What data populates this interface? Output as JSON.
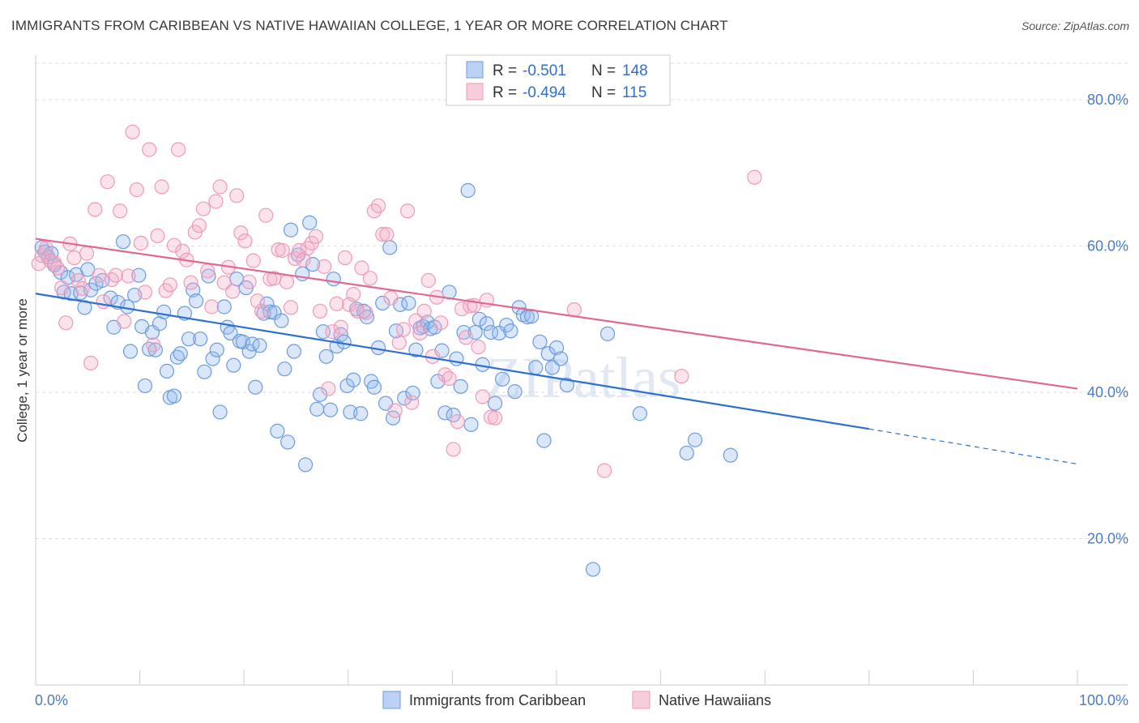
{
  "header": {
    "title": "IMMIGRANTS FROM CARIBBEAN VS NATIVE HAWAIIAN COLLEGE, 1 YEAR OR MORE CORRELATION CHART",
    "source": "Source: ZipAtlas.com"
  },
  "watermark": "ZIPatlas",
  "colors": {
    "blue": "#6a9be0",
    "blue_line": "#2e6fcf",
    "pink": "#ee9ab6",
    "pink_line": "#e0698f",
    "grid": "#dddddd",
    "tick": "#4a7bc8"
  },
  "legend": {
    "rows": [
      {
        "r_label": "R =",
        "r_value": "-0.501",
        "n_label": "N =",
        "n_value": "148"
      },
      {
        "r_label": "R =",
        "r_value": "-0.494",
        "n_label": "N =",
        "n_value": "115"
      }
    ]
  },
  "chart_data": {
    "type": "scatter",
    "xlabel": "",
    "ylabel": "College, 1 year or more",
    "xlim": [
      0,
      100
    ],
    "ylim": [
      0,
      85
    ],
    "x_tick_labels": [
      "0.0%",
      "100.0%"
    ],
    "y_ticks": [
      20,
      40,
      60,
      80
    ],
    "y_tick_labels": [
      "20.0%",
      "40.0%",
      "60.0%",
      "80.0%"
    ],
    "grid": true,
    "legend_position": "top-center",
    "series": [
      {
        "name": "Immigrants from Caribbean",
        "color": "#6a9be0",
        "trend": {
          "x0": 0,
          "y0": 53.5,
          "x1": 80,
          "y1": 35.0,
          "dash_x1": 100,
          "dash_y1": 30.2
        },
        "points": [
          [
            0.6,
            59.8
          ],
          [
            0.9,
            59.2
          ],
          [
            1.2,
            58.5
          ],
          [
            1.5,
            59.0
          ],
          [
            1.8,
            57.4
          ],
          [
            2.4,
            56.4
          ],
          [
            2.7,
            53.7
          ],
          [
            3.1,
            55.7
          ],
          [
            3.4,
            53.5
          ],
          [
            3.9,
            56.1
          ],
          [
            4.3,
            53.6
          ],
          [
            4.7,
            51.6
          ],
          [
            5.0,
            56.8
          ],
          [
            5.3,
            54.0
          ],
          [
            5.8,
            54.9
          ],
          [
            6.4,
            55.3
          ],
          [
            7.2,
            52.9
          ],
          [
            7.5,
            48.9
          ],
          [
            7.9,
            52.3
          ],
          [
            8.4,
            60.6
          ],
          [
            8.8,
            51.7
          ],
          [
            9.1,
            45.6
          ],
          [
            9.5,
            53.3
          ],
          [
            9.9,
            56.0
          ],
          [
            10.2,
            49.0
          ],
          [
            10.5,
            40.9
          ],
          [
            10.9,
            45.9
          ],
          [
            11.2,
            48.2
          ],
          [
            11.5,
            45.8
          ],
          [
            11.9,
            49.4
          ],
          [
            12.3,
            51.0
          ],
          [
            12.6,
            42.9
          ],
          [
            12.9,
            39.3
          ],
          [
            13.3,
            39.5
          ],
          [
            13.6,
            44.8
          ],
          [
            13.9,
            45.3
          ],
          [
            14.3,
            50.8
          ],
          [
            14.7,
            47.3
          ],
          [
            15.1,
            54.0
          ],
          [
            15.4,
            52.5
          ],
          [
            15.8,
            47.3
          ],
          [
            16.2,
            42.8
          ],
          [
            16.6,
            55.9
          ],
          [
            17.0,
            44.6
          ],
          [
            17.4,
            45.8
          ],
          [
            17.7,
            37.3
          ],
          [
            18.1,
            51.7
          ],
          [
            18.4,
            48.9
          ],
          [
            18.7,
            48.1
          ],
          [
            19.0,
            43.7
          ],
          [
            19.3,
            55.5
          ],
          [
            19.6,
            47.0
          ],
          [
            19.9,
            46.9
          ],
          [
            20.2,
            54.3
          ],
          [
            20.5,
            45.6
          ],
          [
            20.8,
            46.6
          ],
          [
            21.1,
            40.7
          ],
          [
            21.5,
            46.4
          ],
          [
            21.9,
            50.8
          ],
          [
            22.2,
            52.1
          ],
          [
            22.5,
            51.0
          ],
          [
            22.9,
            50.9
          ],
          [
            23.2,
            34.7
          ],
          [
            23.6,
            49.8
          ],
          [
            23.9,
            43.2
          ],
          [
            24.2,
            33.2
          ],
          [
            24.5,
            62.2
          ],
          [
            24.8,
            45.6
          ],
          [
            25.2,
            58.8
          ],
          [
            25.6,
            56.2
          ],
          [
            25.9,
            30.1
          ],
          [
            26.3,
            63.2
          ],
          [
            26.6,
            57.5
          ],
          [
            27.0,
            37.7
          ],
          [
            27.3,
            39.7
          ],
          [
            27.6,
            48.3
          ],
          [
            27.9,
            44.9
          ],
          [
            28.3,
            37.6
          ],
          [
            28.6,
            55.5
          ],
          [
            28.9,
            46.3
          ],
          [
            29.3,
            47.9
          ],
          [
            29.6,
            46.9
          ],
          [
            29.9,
            40.9
          ],
          [
            30.2,
            37.3
          ],
          [
            30.5,
            41.7
          ],
          [
            30.8,
            51.4
          ],
          [
            31.2,
            37.1
          ],
          [
            31.5,
            51.1
          ],
          [
            31.8,
            50.3
          ],
          [
            32.2,
            41.5
          ],
          [
            32.5,
            40.7
          ],
          [
            32.9,
            46.1
          ],
          [
            33.3,
            52.2
          ],
          [
            33.6,
            38.5
          ],
          [
            34.0,
            59.8
          ],
          [
            34.3,
            36.5
          ],
          [
            34.6,
            48.4
          ],
          [
            35.0,
            52.0
          ],
          [
            35.4,
            39.2
          ],
          [
            35.8,
            52.2
          ],
          [
            36.2,
            39.9
          ],
          [
            36.5,
            45.8
          ],
          [
            36.9,
            48.8
          ],
          [
            37.2,
            49.0
          ],
          [
            37.6,
            49.6
          ],
          [
            37.9,
            48.7
          ],
          [
            38.3,
            48.9
          ],
          [
            38.6,
            41.5
          ],
          [
            39.0,
            45.7
          ],
          [
            39.3,
            37.2
          ],
          [
            39.7,
            53.7
          ],
          [
            40.1,
            36.9
          ],
          [
            40.4,
            44.6
          ],
          [
            40.8,
            40.8
          ],
          [
            41.1,
            48.2
          ],
          [
            41.5,
            67.6
          ],
          [
            41.8,
            35.6
          ],
          [
            42.2,
            48.2
          ],
          [
            42.6,
            50.0
          ],
          [
            42.9,
            43.8
          ],
          [
            43.3,
            49.4
          ],
          [
            43.7,
            48.2
          ],
          [
            44.1,
            38.5
          ],
          [
            44.5,
            48.1
          ],
          [
            44.8,
            41.8
          ],
          [
            45.2,
            49.2
          ],
          [
            45.6,
            48.4
          ],
          [
            46.0,
            40.1
          ],
          [
            46.4,
            51.6
          ],
          [
            46.8,
            50.6
          ],
          [
            47.2,
            50.3
          ],
          [
            47.6,
            50.4
          ],
          [
            48.0,
            43.4
          ],
          [
            48.4,
            46.9
          ],
          [
            48.8,
            33.4
          ],
          [
            49.2,
            45.3
          ],
          [
            49.6,
            43.4
          ],
          [
            50.0,
            46.1
          ],
          [
            50.4,
            44.6
          ],
          [
            51.0,
            41.0
          ],
          [
            53.5,
            15.8
          ],
          [
            54.9,
            48.0
          ],
          [
            58.0,
            37.1
          ],
          [
            62.5,
            31.7
          ],
          [
            63.3,
            33.5
          ],
          [
            66.7,
            31.4
          ]
        ]
      },
      {
        "name": "Native Hawaiians",
        "color": "#ee9ab6",
        "trend": {
          "x0": 0,
          "y0": 61.0,
          "x1": 100,
          "y1": 40.5
        },
        "points": [
          [
            0.3,
            57.6
          ],
          [
            0.6,
            58.7
          ],
          [
            1.0,
            59.7
          ],
          [
            1.4,
            58.0
          ],
          [
            1.8,
            57.7
          ],
          [
            2.1,
            57.0
          ],
          [
            2.5,
            54.3
          ],
          [
            2.9,
            49.5
          ],
          [
            3.3,
            60.3
          ],
          [
            3.7,
            58.4
          ],
          [
            4.1,
            55.3
          ],
          [
            4.5,
            54.2
          ],
          [
            4.9,
            59.0
          ],
          [
            5.3,
            44.0
          ],
          [
            5.7,
            65.0
          ],
          [
            6.1,
            56.0
          ],
          [
            6.5,
            52.4
          ],
          [
            6.9,
            68.8
          ],
          [
            7.3,
            55.4
          ],
          [
            7.7,
            56.0
          ],
          [
            8.1,
            64.8
          ],
          [
            8.5,
            49.7
          ],
          [
            8.9,
            55.9
          ],
          [
            9.3,
            75.6
          ],
          [
            9.7,
            67.7
          ],
          [
            10.1,
            60.4
          ],
          [
            10.5,
            53.7
          ],
          [
            10.9,
            73.2
          ],
          [
            11.3,
            46.5
          ],
          [
            11.7,
            61.4
          ],
          [
            12.1,
            68.1
          ],
          [
            12.5,
            53.9
          ],
          [
            12.9,
            54.7
          ],
          [
            13.3,
            60.1
          ],
          [
            13.7,
            73.2
          ],
          [
            14.1,
            59.3
          ],
          [
            14.5,
            58.1
          ],
          [
            14.9,
            55.0
          ],
          [
            15.3,
            61.9
          ],
          [
            15.7,
            62.8
          ],
          [
            16.1,
            65.1
          ],
          [
            16.5,
            56.6
          ],
          [
            16.9,
            51.7
          ],
          [
            17.3,
            66.1
          ],
          [
            17.7,
            68.1
          ],
          [
            18.1,
            55.0
          ],
          [
            18.5,
            57.1
          ],
          [
            18.9,
            53.8
          ],
          [
            19.3,
            66.9
          ],
          [
            19.7,
            61.8
          ],
          [
            20.1,
            60.7
          ],
          [
            20.5,
            55.1
          ],
          [
            20.9,
            58.0
          ],
          [
            21.3,
            52.5
          ],
          [
            21.7,
            51.1
          ],
          [
            22.1,
            64.2
          ],
          [
            22.5,
            55.5
          ],
          [
            22.9,
            55.6
          ],
          [
            23.3,
            59.5
          ],
          [
            23.7,
            59.4
          ],
          [
            24.1,
            55.1
          ],
          [
            24.5,
            51.6
          ],
          [
            24.9,
            58.3
          ],
          [
            25.3,
            59.4
          ],
          [
            25.7,
            58.1
          ],
          [
            26.1,
            59.7
          ],
          [
            26.5,
            60.4
          ],
          [
            26.9,
            61.3
          ],
          [
            27.3,
            51.1
          ],
          [
            27.7,
            57.2
          ],
          [
            28.1,
            40.5
          ],
          [
            28.5,
            48.3
          ],
          [
            28.9,
            52.1
          ],
          [
            29.3,
            48.9
          ],
          [
            29.7,
            58.4
          ],
          [
            30.1,
            52.0
          ],
          [
            30.5,
            53.4
          ],
          [
            30.9,
            51.1
          ],
          [
            31.3,
            57.0
          ],
          [
            31.7,
            50.9
          ],
          [
            32.1,
            55.6
          ],
          [
            32.5,
            64.8
          ],
          [
            32.9,
            65.5
          ],
          [
            33.3,
            61.6
          ],
          [
            33.7,
            61.6
          ],
          [
            34.1,
            52.9
          ],
          [
            34.5,
            37.5
          ],
          [
            34.9,
            46.8
          ],
          [
            35.3,
            48.6
          ],
          [
            35.7,
            64.8
          ],
          [
            36.1,
            38.6
          ],
          [
            36.5,
            49.8
          ],
          [
            36.9,
            48.1
          ],
          [
            37.3,
            51.1
          ],
          [
            37.7,
            55.3
          ],
          [
            38.1,
            44.9
          ],
          [
            38.5,
            53.0
          ],
          [
            38.9,
            49.5
          ],
          [
            39.3,
            42.4
          ],
          [
            39.7,
            41.9
          ],
          [
            40.1,
            32.2
          ],
          [
            40.5,
            36.0
          ],
          [
            40.9,
            51.4
          ],
          [
            41.3,
            47.5
          ],
          [
            41.7,
            51.8
          ],
          [
            42.1,
            51.9
          ],
          [
            42.5,
            46.2
          ],
          [
            42.9,
            39.4
          ],
          [
            43.3,
            52.6
          ],
          [
            43.7,
            36.6
          ],
          [
            44.1,
            36.5
          ],
          [
            51.7,
            51.3
          ],
          [
            54.6,
            29.3
          ],
          [
            62.0,
            42.2
          ],
          [
            69.0,
            69.4
          ]
        ]
      }
    ]
  }
}
